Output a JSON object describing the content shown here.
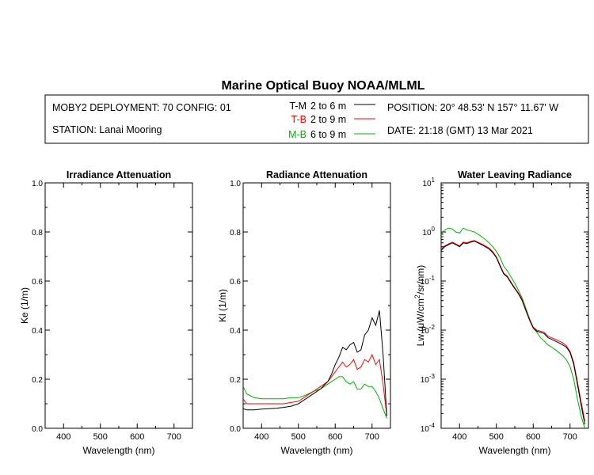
{
  "title": "Marine Optical Buoy NOAA/MLML",
  "info": {
    "deployment": "MOBY2 DEPLOYMENT: 70 CONFIG: 01",
    "station": "STATION: Lanai Mooring",
    "position": "POSITION: 20° 48.53' N   157° 11.67' W",
    "date": "DATE: 21:18 (GMT) 13 Mar 2021"
  },
  "legend": [
    {
      "code": "T-M",
      "range": "2 to 6  m",
      "color": "#000000"
    },
    {
      "code": "T-B",
      "range": "2 to 9  m",
      "color": "#ff0000"
    },
    {
      "code": "M-B",
      "range": "6 to 9  m",
      "color": "#00b000"
    }
  ],
  "chart_data": [
    {
      "type": "line",
      "title": "Irradiance Attenuation",
      "xlabel": "Wavelength (nm)",
      "ylabel": "Ke  (1/m)",
      "xlim": [
        350,
        750
      ],
      "ylim": [
        0,
        1
      ],
      "xticks": [
        "400",
        "500",
        "600",
        "700"
      ],
      "yticks": [
        "0.0",
        "0.2",
        "0.4",
        "0.6",
        "0.8",
        "1.0"
      ],
      "series": []
    },
    {
      "type": "line",
      "title": "Radiance Attenuation",
      "xlabel": "Wavelength (nm)",
      "ylabel": "Kl  (1/m)",
      "xlim": [
        350,
        750
      ],
      "ylim": [
        0,
        1
      ],
      "xticks": [
        "400",
        "500",
        "600",
        "700"
      ],
      "yticks": [
        "0.0",
        "0.2",
        "0.4",
        "0.6",
        "0.8",
        "1.0"
      ],
      "series": [
        {
          "name": "T-M",
          "color": "#000000",
          "x": [
            350,
            360,
            380,
            400,
            420,
            440,
            460,
            480,
            500,
            520,
            540,
            560,
            580,
            590,
            600,
            610,
            620,
            630,
            640,
            650,
            660,
            670,
            680,
            690,
            700,
            710,
            720,
            730,
            740
          ],
          "y": [
            0.08,
            0.075,
            0.075,
            0.078,
            0.08,
            0.082,
            0.085,
            0.09,
            0.1,
            0.12,
            0.14,
            0.16,
            0.19,
            0.22,
            0.26,
            0.29,
            0.33,
            0.32,
            0.34,
            0.35,
            0.31,
            0.32,
            0.38,
            0.4,
            0.45,
            0.42,
            0.48,
            0.3,
            0.05
          ]
        },
        {
          "name": "T-B",
          "color": "#ff0000",
          "x": [
            350,
            360,
            380,
            400,
            420,
            440,
            460,
            480,
            500,
            520,
            540,
            560,
            580,
            590,
            600,
            610,
            620,
            630,
            640,
            650,
            660,
            670,
            680,
            690,
            700,
            710,
            720,
            730,
            740
          ],
          "y": [
            0.12,
            0.1,
            0.1,
            0.1,
            0.1,
            0.1,
            0.1,
            0.105,
            0.11,
            0.13,
            0.15,
            0.17,
            0.19,
            0.21,
            0.23,
            0.25,
            0.27,
            0.25,
            0.26,
            0.28,
            0.24,
            0.25,
            0.28,
            0.27,
            0.3,
            0.26,
            0.28,
            0.18,
            0.05
          ]
        },
        {
          "name": "M-B",
          "color": "#00b000",
          "x": [
            350,
            360,
            380,
            400,
            420,
            440,
            460,
            480,
            500,
            520,
            540,
            560,
            580,
            590,
            600,
            610,
            620,
            630,
            640,
            650,
            660,
            670,
            680,
            690,
            700,
            710,
            720,
            730,
            740
          ],
          "y": [
            0.17,
            0.14,
            0.125,
            0.12,
            0.12,
            0.12,
            0.12,
            0.125,
            0.125,
            0.135,
            0.15,
            0.16,
            0.18,
            0.19,
            0.2,
            0.21,
            0.21,
            0.19,
            0.18,
            0.19,
            0.16,
            0.16,
            0.18,
            0.17,
            0.17,
            0.15,
            0.12,
            0.08,
            0.04
          ]
        }
      ]
    },
    {
      "type": "line",
      "title": "Water Leaving Radiance",
      "xlabel": "Wavelength (nm)",
      "ylabel_main": "Lw  (μW/cm",
      "ylabel_sup": "2",
      "ylabel_tail": "/sr/nm)",
      "xlim": [
        350,
        750
      ],
      "ylim": [
        0.0001,
        10
      ],
      "yscale": "log",
      "xticks": [
        "400",
        "500",
        "600",
        "700"
      ],
      "yticks": [
        {
          "base": "10",
          "exp": "1",
          "value": 10
        },
        {
          "base": "10",
          "exp": "0",
          "value": 1
        },
        {
          "base": "10",
          "exp": "-1",
          "value": 0.1
        },
        {
          "base": "10",
          "exp": "-2",
          "value": 0.01
        },
        {
          "base": "10",
          "exp": "-3",
          "value": 0.001
        },
        {
          "base": "10",
          "exp": "-4",
          "value": 0.0001
        }
      ],
      "series": [
        {
          "name": "T-M",
          "color": "#000000",
          "x": [
            350,
            360,
            370,
            380,
            390,
            400,
            410,
            420,
            430,
            440,
            450,
            460,
            470,
            480,
            490,
            500,
            510,
            520,
            530,
            540,
            550,
            560,
            570,
            580,
            590,
            600,
            610,
            620,
            630,
            640,
            650,
            660,
            670,
            680,
            690,
            700,
            710,
            720,
            730,
            740
          ],
          "y": [
            0.42,
            0.5,
            0.55,
            0.6,
            0.55,
            0.5,
            0.6,
            0.58,
            0.62,
            0.65,
            0.6,
            0.55,
            0.5,
            0.45,
            0.38,
            0.3,
            0.2,
            0.14,
            0.12,
            0.09,
            0.07,
            0.055,
            0.04,
            0.025,
            0.016,
            0.011,
            0.0095,
            0.009,
            0.0085,
            0.007,
            0.0065,
            0.006,
            0.0055,
            0.005,
            0.0045,
            0.0035,
            0.002,
            0.0008,
            0.0003,
            0.00012
          ]
        },
        {
          "name": "T-B",
          "color": "#ff0000",
          "x": [
            350,
            360,
            370,
            380,
            390,
            400,
            410,
            420,
            430,
            440,
            450,
            460,
            470,
            480,
            490,
            500,
            510,
            520,
            530,
            540,
            550,
            560,
            570,
            580,
            590,
            600,
            610,
            620,
            630,
            640,
            650,
            660,
            670,
            680,
            690,
            700,
            710,
            720,
            730,
            740
          ],
          "y": [
            0.45,
            0.52,
            0.57,
            0.62,
            0.57,
            0.52,
            0.62,
            0.6,
            0.64,
            0.67,
            0.62,
            0.57,
            0.52,
            0.47,
            0.4,
            0.31,
            0.21,
            0.145,
            0.125,
            0.094,
            0.073,
            0.057,
            0.042,
            0.026,
            0.017,
            0.0115,
            0.01,
            0.0095,
            0.009,
            0.0075,
            0.007,
            0.0065,
            0.006,
            0.0055,
            0.0048,
            0.0037,
            0.0022,
            0.0009,
            0.00035,
            0.00014
          ]
        },
        {
          "name": "M-B",
          "color": "#00b000",
          "x": [
            350,
            360,
            370,
            380,
            390,
            400,
            410,
            420,
            430,
            440,
            450,
            460,
            470,
            480,
            490,
            500,
            510,
            520,
            530,
            540,
            550,
            560,
            570,
            580,
            590,
            600,
            610,
            620,
            630,
            640,
            650,
            660,
            670,
            680,
            690,
            700,
            710,
            720,
            730,
            740
          ],
          "y": [
            0.9,
            1.1,
            1.2,
            1.15,
            1.0,
            0.95,
            1.2,
            1.1,
            1.05,
            1.0,
            0.9,
            0.8,
            0.7,
            0.6,
            0.5,
            0.4,
            0.3,
            0.2,
            0.16,
            0.12,
            0.09,
            0.065,
            0.045,
            0.028,
            0.017,
            0.011,
            0.009,
            0.007,
            0.006,
            0.005,
            0.0045,
            0.004,
            0.0035,
            0.003,
            0.0025,
            0.0018,
            0.001,
            0.0004,
            0.00018,
            0.0001
          ]
        }
      ]
    }
  ]
}
